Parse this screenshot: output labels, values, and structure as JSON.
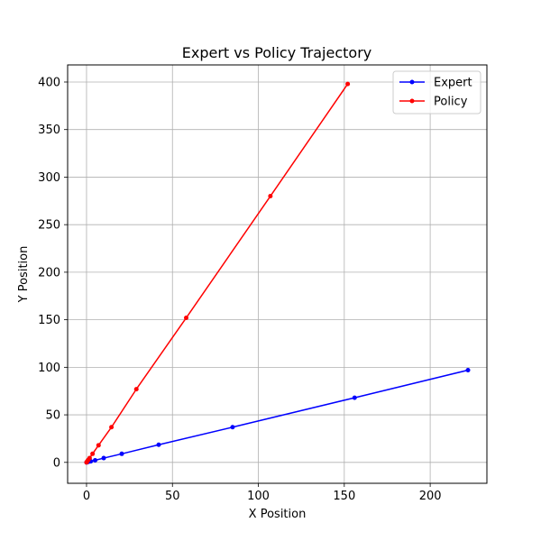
{
  "chart_data": {
    "type": "line",
    "title": "Expert vs Policy Trajectory",
    "xlabel": "X Position",
    "ylabel": "Y Position",
    "xlim": [
      -11,
      233
    ],
    "ylim": [
      -22,
      418
    ],
    "xticks": [
      0,
      50,
      100,
      150,
      200
    ],
    "yticks": [
      0,
      50,
      100,
      150,
      200,
      250,
      300,
      350,
      400
    ],
    "grid": true,
    "legend_position": "top-right",
    "series": [
      {
        "name": "Expert",
        "color": "#0000ff",
        "x": [
          0,
          0.3,
          0.6,
          1.2,
          2.5,
          5,
          10,
          20.5,
          42,
          85,
          156,
          222
        ],
        "y": [
          0,
          0.15,
          0.3,
          0.6,
          1.1,
          2.2,
          4.5,
          9,
          18.5,
          37,
          68,
          97
        ]
      },
      {
        "name": "Policy",
        "color": "#ff0000",
        "x": [
          0,
          0.3,
          0.6,
          1,
          1.8,
          3.5,
          7,
          14.5,
          29,
          58,
          107,
          152
        ],
        "y": [
          0,
          0.8,
          1.6,
          2.5,
          4.5,
          9,
          18,
          37,
          77,
          152,
          280,
          398
        ]
      }
    ]
  }
}
